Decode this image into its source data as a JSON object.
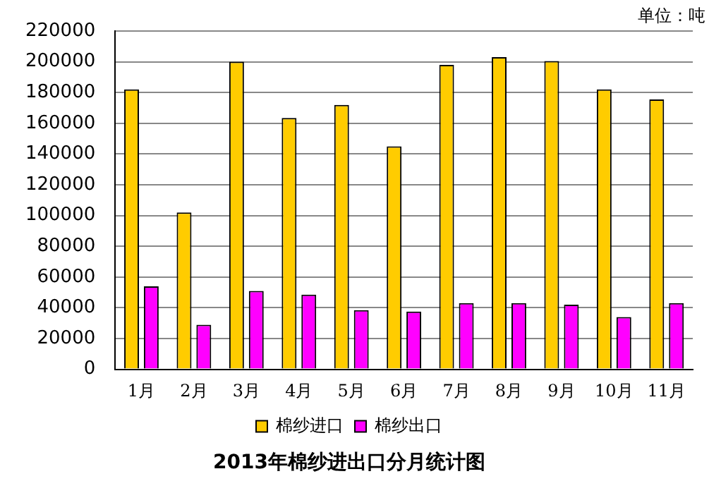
{
  "chart_data": {
    "type": "bar",
    "title": "2013年棉纱进出口分月统计图",
    "annotations": [
      "单位：吨"
    ],
    "categories": [
      "1月",
      "2月",
      "3月",
      "4月",
      "5月",
      "6月",
      "7月",
      "8月",
      "9月",
      "10月",
      "11月"
    ],
    "series": [
      {
        "name": "棉纱进口",
        "color": "#ffcc00",
        "values": [
          182000,
          102000,
          200000,
          163500,
          172000,
          145000,
          198000,
          203000,
          200500,
          182000,
          175500
        ]
      },
      {
        "name": "棉纱出口",
        "color": "#ff00ff",
        "values": [
          54000,
          29000,
          51000,
          48500,
          38500,
          37500,
          43000,
          43000,
          42000,
          34000,
          43000
        ]
      }
    ],
    "ylim": [
      0,
      220000
    ],
    "yticks": [
      0,
      20000,
      40000,
      60000,
      80000,
      100000,
      120000,
      140000,
      160000,
      180000,
      200000,
      220000
    ],
    "grid": "y",
    "legend": "bottom"
  }
}
